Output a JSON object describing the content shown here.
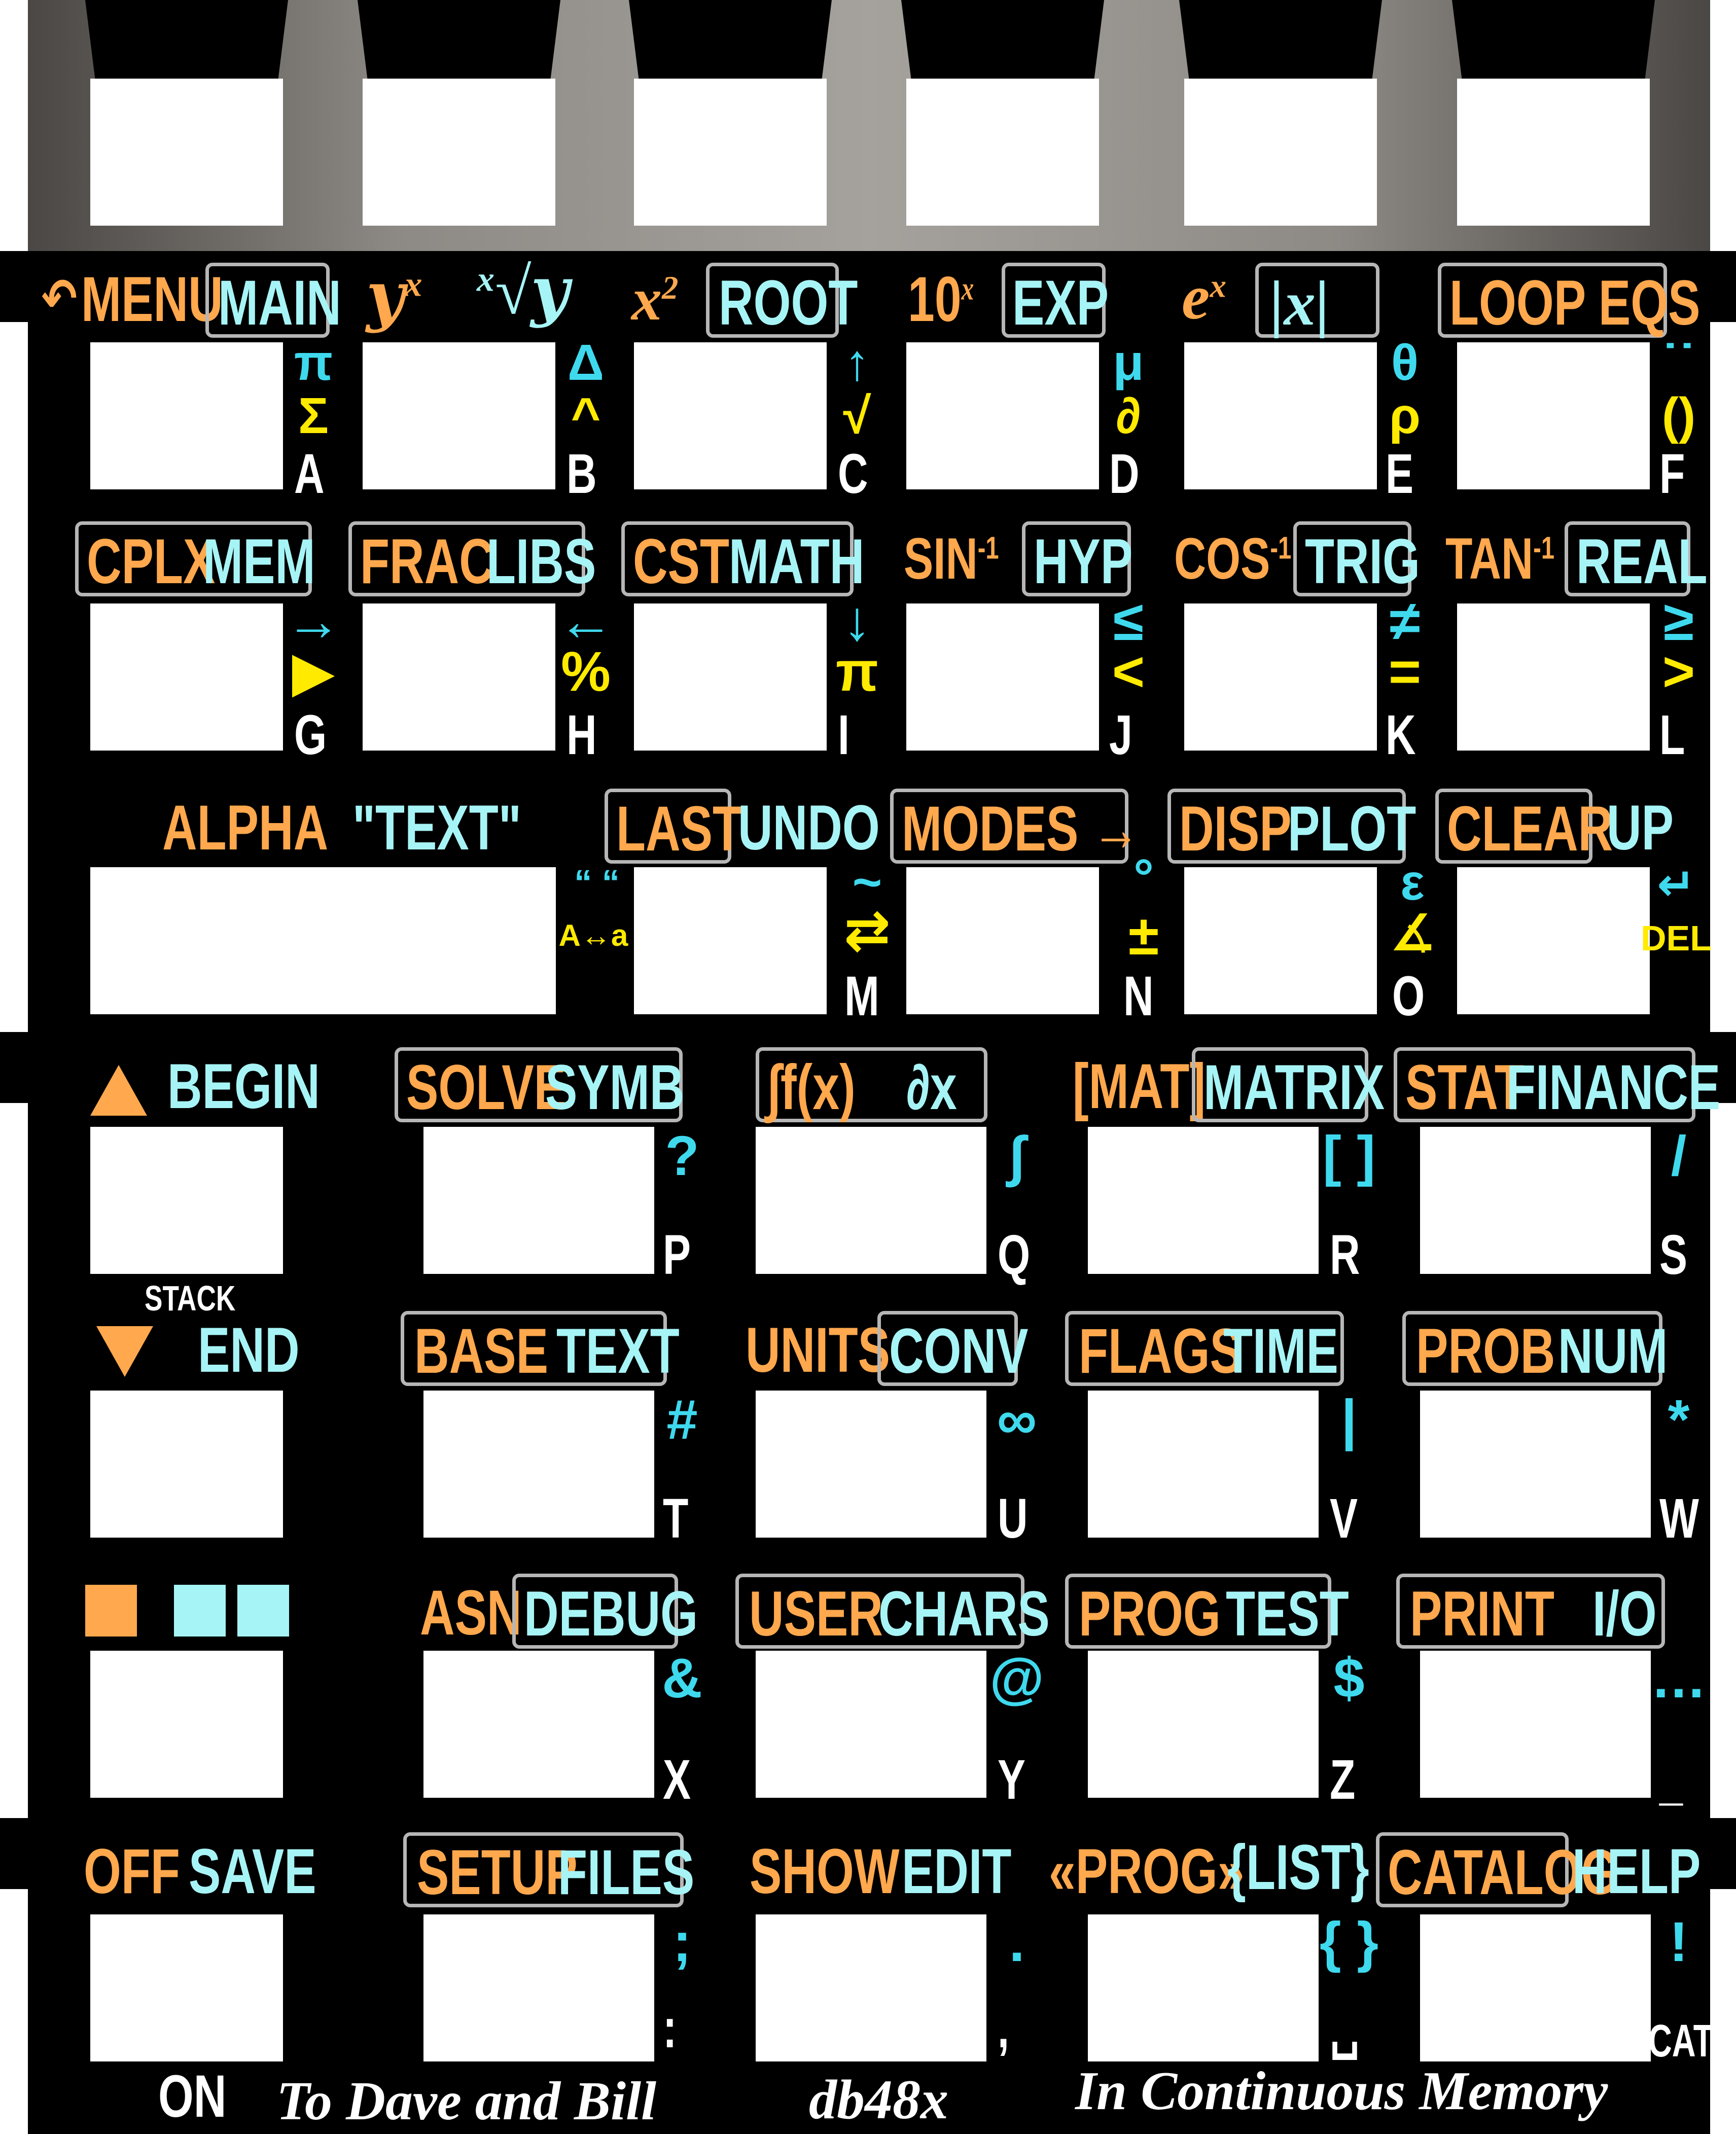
{
  "softkey_row": {
    "count": 6
  },
  "row1": {
    "shift_labels": [
      "MENU",
      "MAIN",
      "yˣ",
      "ˣ√y",
      "x²",
      "ROOT",
      "10",
      "x",
      "EXP",
      "e",
      "x",
      "|x|",
      "LOOP EQS"
    ],
    "undo_glyph": "↶",
    "menu": "MENU",
    "main": "MAIN",
    "root": "ROOT",
    "ten": "10",
    "exp_label": "EXP",
    "absx": "|x|",
    "loop": "LOOP EQS",
    "alpha": [
      {
        "sym1": "π",
        "sym2": "Σ",
        "letter": "A"
      },
      {
        "sym1": "Δ",
        "sym2": "^",
        "letter": "B"
      },
      {
        "sym1": "↑",
        "sym2": "√",
        "letter": "C"
      },
      {
        "sym1": "μ",
        "sym2": "∂",
        "letter": "D"
      },
      {
        "sym1": "θ",
        "sym2": "ρ",
        "letter": "E"
      },
      {
        "sym1": "˙˙",
        "sym2": "()",
        "letter": "F"
      }
    ]
  },
  "row2": {
    "cplx": "CPLX",
    "mem": "MEM",
    "frac": "FRAC",
    "libs": "LIBS",
    "cst": "CST",
    "math": "MATH",
    "sin": "SIN",
    "hyp": "HYP",
    "cos": "COS",
    "trig": "TRIG",
    "tan": "TAN",
    "real": "REAL",
    "inv": "-1",
    "alpha": [
      {
        "sym1": "→",
        "sym2": "▶",
        "letter": "G"
      },
      {
        "sym1": "←",
        "sym2": "%",
        "letter": "H"
      },
      {
        "sym1": "↓",
        "sym2": "π",
        "letter": "I"
      },
      {
        "sym1": "≤",
        "sym2": "<",
        "letter": "J"
      },
      {
        "sym1": "≠",
        "sym2": "=",
        "letter": "K"
      },
      {
        "sym1": "≥",
        "sym2": ">",
        "letter": "L"
      }
    ]
  },
  "row3": {
    "alpha_label": "ALPHA",
    "text_label": "\"TEXT\"",
    "last": "LAST",
    "undo": "UNDO",
    "modes": "MODES →",
    "disp": "DISP",
    "plot": "PLOT",
    "clear": "CLEAR",
    "up": "UP",
    "quotes": "“ “",
    "case": "A↔a",
    "tilde": "~",
    "swap": "⇄",
    "letter_m": "M",
    "degree": "°",
    "pm": "±",
    "letter_n": "N",
    "eps": "ε",
    "angle": "∡",
    "letter_o": "O",
    "enter_glyph": "↵",
    "del": "DEL"
  },
  "row4": {
    "begin": "BEGIN",
    "solve": "SOLVE",
    "symb": "SYMB",
    "integ": "∫f(x)",
    "deriv": "∂x",
    "mat": "[MAT]",
    "matrix": "MATRIX",
    "stat": "STAT",
    "finance": "FINANCE",
    "alpha": [
      {
        "sym": "?",
        "letter": "P"
      },
      {
        "sym": "∫",
        "letter": "Q"
      },
      {
        "sym": "[ ]",
        "letter": "R"
      },
      {
        "sym": "/",
        "letter": "S"
      }
    ]
  },
  "row5": {
    "stack": "STACK",
    "end": "END",
    "base": "BASE",
    "text": "TEXT",
    "units": "UNITS",
    "conv": "CONV",
    "flags": "FLAGS",
    "time": "TIME",
    "prob": "PROB",
    "num": "NUM",
    "alpha": [
      {
        "sym": "#",
        "letter": "T"
      },
      {
        "sym": "∞",
        "letter": "U"
      },
      {
        "sym": "|",
        "letter": "V"
      },
      {
        "sym": "*",
        "letter": "W"
      }
    ]
  },
  "row6": {
    "asn": "ASN",
    "debug": "DEBUG",
    "user": "USER",
    "chars": "CHARS",
    "prog": "PROG",
    "test": "TEST",
    "print": "PRINT",
    "io": "I/O",
    "alpha": [
      {
        "sym": "&",
        "letter": "X"
      },
      {
        "sym": "@",
        "letter": "Y"
      },
      {
        "sym": "$",
        "letter": "Z"
      },
      {
        "sym": "…",
        "letter": "_"
      }
    ]
  },
  "row7": {
    "off": "OFF",
    "save": "SAVE",
    "setup": "SETUP",
    "files": "FILES",
    "show": "SHOW",
    "edit": "EDIT",
    "progq": "«PROG»",
    "list": "{LIST}",
    "catalog": "CATALOG",
    "help": "HELP",
    "on": "ON",
    "cat": "CAT",
    "alpha": [
      {
        "sym": ";",
        "letter": ":"
      },
      {
        "sym": ".",
        "letter": ","
      },
      {
        "sym": "{ }",
        "letter": "␣"
      },
      {
        "sym": "!",
        "letter": "CAT"
      }
    ]
  },
  "footer": {
    "left": "To Dave and Bill",
    "logo": "db48x",
    "right": "In Continuous Memory"
  },
  "colors": {
    "orange": "#ffa84d",
    "cyan": "#3fd9ee",
    "yellow": "#ffea00",
    "light_cyan": "#a7f4f6",
    "background": "#000000",
    "top_gray": "#a5a19c"
  }
}
